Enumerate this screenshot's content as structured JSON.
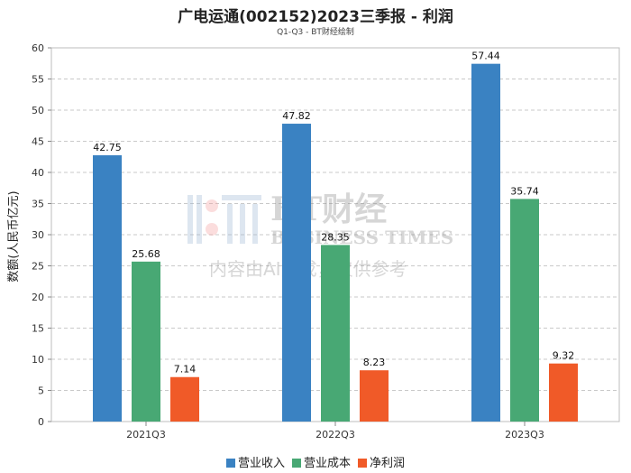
{
  "chart_data": {
    "type": "bar",
    "title": "广电运通(002152)2023三季报 - 利润",
    "subtitle": "Q1-Q3 - BT财经绘制",
    "ylabel": "数额(人民币亿元)",
    "categories": [
      "2021Q3",
      "2022Q3",
      "2023Q3"
    ],
    "series": [
      {
        "name": "营业收入",
        "color": "#3a82c2",
        "values": [
          42.75,
          47.82,
          57.44
        ]
      },
      {
        "name": "营业成本",
        "color": "#48a874",
        "values": [
          25.68,
          28.35,
          35.74
        ]
      },
      {
        "name": "净利润",
        "color": "#f05a28",
        "values": [
          7.14,
          8.23,
          9.32
        ]
      }
    ],
    "ylim": [
      0,
      60
    ],
    "yticks": [
      0,
      5,
      10,
      15,
      20,
      25,
      30,
      35,
      40,
      45,
      50,
      55,
      60
    ],
    "grid": true,
    "legend_position": "bottom"
  },
  "watermark": {
    "line1": "BT财经",
    "line2": "BUSINESS TIMES",
    "line3": "内容由AI生成，仅供参考"
  }
}
